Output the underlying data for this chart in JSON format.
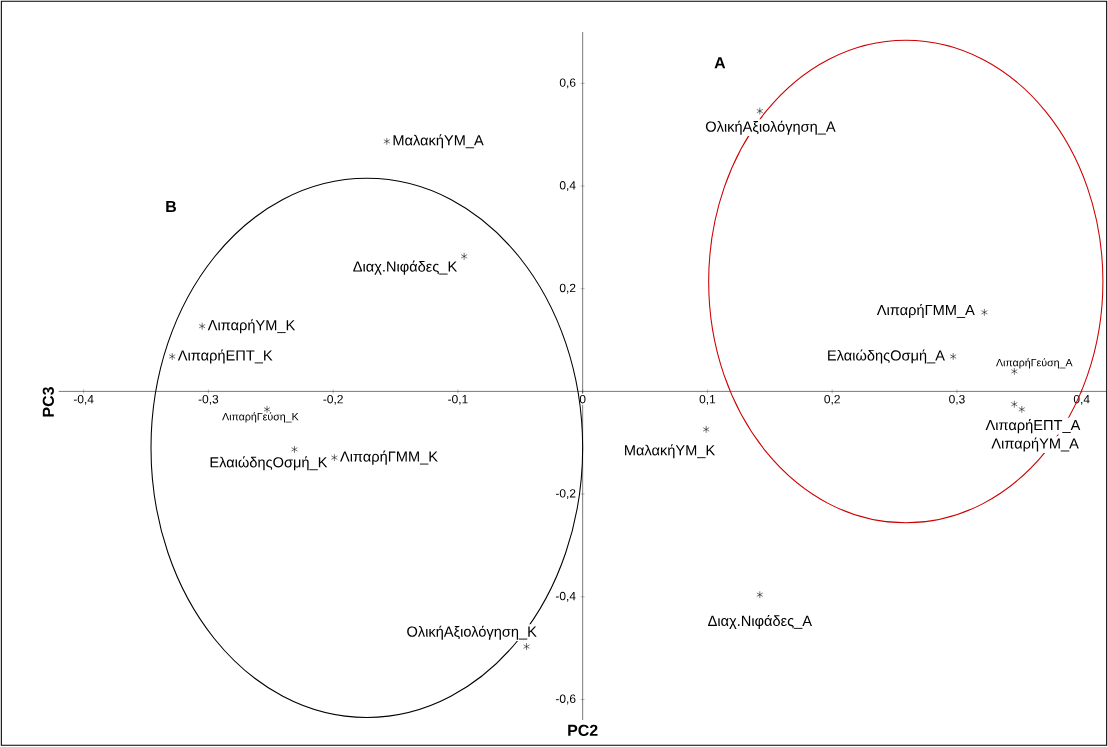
{
  "chart_data": {
    "type": "scatter",
    "xlabel": "PC2",
    "ylabel": "PC3",
    "x": [
      -0.157,
      0.142,
      -0.095,
      0.322,
      -0.305,
      -0.329,
      0.297,
      0.346,
      0.346,
      0.352,
      -0.253,
      -0.231,
      -0.199,
      0.099,
      0.142,
      -0.045
    ],
    "values": [
      0.487,
      0.546,
      0.263,
      0.154,
      0.127,
      0.068,
      0.068,
      0.039,
      -0.025,
      -0.035,
      -0.035,
      -0.113,
      -0.129,
      -0.074,
      -0.396,
      -0.497
    ],
    "color": "#000000",
    "marker": "cross",
    "grid": false,
    "xlim": [
      -0.42,
      0.42
    ],
    "ylim": [
      -0.64,
      0.7
    ],
    "xticks": [
      {
        "value": -0.4,
        "label": "-0,4"
      },
      {
        "value": -0.3,
        "label": "-0,3"
      },
      {
        "value": -0.2,
        "label": "-0,2"
      },
      {
        "value": -0.1,
        "label": "-0,1"
      },
      0,
      {
        "value": 0.1,
        "label": "0,1"
      },
      {
        "value": 0.2,
        "label": "0,2"
      },
      {
        "value": 0.3,
        "label": "0,3"
      },
      {
        "value": 0.4,
        "label": "0,4"
      }
    ],
    "yticks": [
      {
        "value": -0.6,
        "label": "-0,6"
      },
      {
        "value": -0.4,
        "label": "-0,4"
      },
      {
        "value": -0.2,
        "label": "-0,2"
      },
      {
        "value": 0.2,
        "label": "0,2"
      },
      {
        "value": 0.4,
        "label": "0,4"
      },
      {
        "value": 0.6,
        "label": "0,6"
      }
    ],
    "annotations": [
      {
        "text": "ΜαλακήΥΜ_Α",
        "x": -0.157,
        "y": 0.487
      },
      {
        "text": "ΟλικήΑξιολόγηση_Α",
        "x": 0.142,
        "y": 0.546
      },
      {
        "text": "Διαχ.Νιφάδες_Κ",
        "x": -0.095,
        "y": 0.263
      },
      {
        "text": "ΛιπαρήΓΜΜ_Α",
        "x": 0.322,
        "y": 0.154
      },
      {
        "text": "ΛιπαρήΥΜ_Κ",
        "x": -0.305,
        "y": 0.127
      },
      {
        "text": "ΛιπαρήΕΠΤ_Κ",
        "x": -0.329,
        "y": 0.068
      },
      {
        "text": "ΕλαιώδηςΟσμή_Α",
        "x": 0.297,
        "y": 0.068
      },
      {
        "text": "ΛιπαρήΓεύση_Α",
        "x": 0.346,
        "y": 0.039
      },
      {
        "text": "ΛιπαρήΕΠΤ_Α",
        "x": 0.346,
        "y": -0.025
      },
      {
        "text": "ΛιπαρήΥΜ_Α",
        "x": 0.352,
        "y": -0.035
      },
      {
        "text": "ΛιπαρήΓεύση_Κ",
        "x": -0.253,
        "y": -0.035
      },
      {
        "text": "ΕλαιώδηςΟσμή_Κ",
        "x": -0.231,
        "y": -0.113
      },
      {
        "text": "ΛιπαρήΓΜΜ_Κ",
        "x": -0.199,
        "y": -0.129
      },
      {
        "text": "ΜαλακήΥΜ_Κ",
        "x": 0.099,
        "y": -0.074
      },
      {
        "text": "Διαχ.Νιφάδες_Α",
        "x": 0.142,
        "y": -0.396
      },
      {
        "text": "ΟλικήΑξιολόγηση_Κ",
        "x": -0.045,
        "y": -0.497
      },
      "A",
      "B"
    ]
  }
}
